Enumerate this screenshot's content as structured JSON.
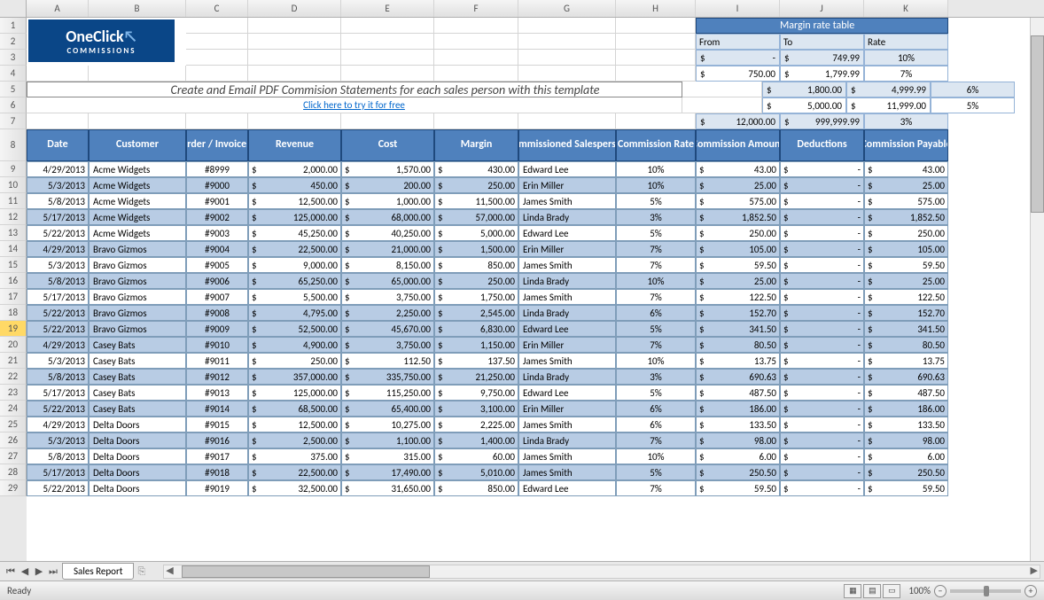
{
  "columns": [
    "A",
    "B",
    "C",
    "D",
    "E",
    "F",
    "G",
    "H",
    "I",
    "J",
    "K"
  ],
  "col_widths": {
    "A": 70,
    "B": 110,
    "C": 70,
    "D": 105,
    "E": 105,
    "F": 95,
    "G": 110,
    "H": 90,
    "I": 95,
    "J": 95,
    "K": 95
  },
  "visible_row_numbers": [
    1,
    2,
    3,
    4,
    5,
    6,
    7,
    8,
    9,
    10,
    11,
    12,
    13,
    14,
    15,
    16,
    17,
    18,
    19,
    20,
    21,
    22,
    23,
    24,
    25,
    26,
    27,
    28,
    29
  ],
  "selected_row": 19,
  "logo": {
    "line1": "OneClick",
    "line2": "COMMISSIONS",
    "bg": "#0a4687"
  },
  "ad": {
    "text": "Create and Email PDF Commision Statements for each sales person with this template",
    "link_text": "Click here to try it for free"
  },
  "margin_table": {
    "title": "Margin rate table",
    "headers": [
      "From",
      "To",
      "Rate"
    ],
    "rows": [
      {
        "from": "-",
        "to": "749.99",
        "rate": "10%"
      },
      {
        "from": "750.00",
        "to": "1,799.99",
        "rate": "7%"
      },
      {
        "from": "1,800.00",
        "to": "4,999.99",
        "rate": "6%"
      },
      {
        "from": "5,000.00",
        "to": "11,999.00",
        "rate": "5%"
      },
      {
        "from": "12,000.00",
        "to": "999,999.99",
        "rate": "3%"
      }
    ],
    "colors": {
      "header_bg": "#4f81bd",
      "header_fg": "#ffffff",
      "sub_bg": "#dce6f1",
      "border": "#95b3d7",
      "alt_bg": "#dce6f1"
    }
  },
  "table": {
    "headers": [
      "Date",
      "Customer",
      "Order / Invoice #",
      "Revenue",
      "Cost",
      "Margin",
      "Commissioned Salesperson",
      "Commission Rate",
      "Commission Amount",
      "Deductions",
      "Commission Payable"
    ],
    "colors": {
      "header_bg": "#4f81bd",
      "header_fg": "#ffffff",
      "row_alt_bg": "#b8cce4",
      "border": "#7f9db9"
    },
    "rows": [
      {
        "date": "4/29/2013",
        "customer": "Acme Widgets",
        "order": "#8999",
        "revenue": "2,000.00",
        "cost": "1,570.00",
        "margin": "430.00",
        "sales": "Edward Lee",
        "rate": "10%",
        "amount": "43.00",
        "ded": "-",
        "pay": "43.00"
      },
      {
        "date": "5/3/2013",
        "customer": "Acme Widgets",
        "order": "#9000",
        "revenue": "450.00",
        "cost": "200.00",
        "margin": "250.00",
        "sales": "Erin Miller",
        "rate": "10%",
        "amount": "25.00",
        "ded": "-",
        "pay": "25.00"
      },
      {
        "date": "5/8/2013",
        "customer": "Acme Widgets",
        "order": "#9001",
        "revenue": "12,500.00",
        "cost": "1,000.00",
        "margin": "11,500.00",
        "sales": "James Smith",
        "rate": "5%",
        "amount": "575.00",
        "ded": "-",
        "pay": "575.00"
      },
      {
        "date": "5/17/2013",
        "customer": "Acme Widgets",
        "order": "#9002",
        "revenue": "125,000.00",
        "cost": "68,000.00",
        "margin": "57,000.00",
        "sales": "Linda Brady",
        "rate": "3%",
        "amount": "1,852.50",
        "ded": "-",
        "pay": "1,852.50"
      },
      {
        "date": "5/22/2013",
        "customer": "Acme Widgets",
        "order": "#9003",
        "revenue": "45,250.00",
        "cost": "40,250.00",
        "margin": "5,000.00",
        "sales": "Edward Lee",
        "rate": "5%",
        "amount": "250.00",
        "ded": "-",
        "pay": "250.00"
      },
      {
        "date": "4/29/2013",
        "customer": "Bravo Gizmos",
        "order": "#9004",
        "revenue": "22,500.00",
        "cost": "21,000.00",
        "margin": "1,500.00",
        "sales": "Erin Miller",
        "rate": "7%",
        "amount": "105.00",
        "ded": "-",
        "pay": "105.00"
      },
      {
        "date": "5/3/2013",
        "customer": "Bravo Gizmos",
        "order": "#9005",
        "revenue": "9,000.00",
        "cost": "8,150.00",
        "margin": "850.00",
        "sales": "James Smith",
        "rate": "7%",
        "amount": "59.50",
        "ded": "-",
        "pay": "59.50"
      },
      {
        "date": "5/8/2013",
        "customer": "Bravo Gizmos",
        "order": "#9006",
        "revenue": "65,250.00",
        "cost": "65,000.00",
        "margin": "250.00",
        "sales": "Linda Brady",
        "rate": "10%",
        "amount": "25.00",
        "ded": "-",
        "pay": "25.00"
      },
      {
        "date": "5/17/2013",
        "customer": "Bravo Gizmos",
        "order": "#9007",
        "revenue": "5,500.00",
        "cost": "3,750.00",
        "margin": "1,750.00",
        "sales": "James Smith",
        "rate": "7%",
        "amount": "122.50",
        "ded": "-",
        "pay": "122.50"
      },
      {
        "date": "5/22/2013",
        "customer": "Bravo Gizmos",
        "order": "#9008",
        "revenue": "4,795.00",
        "cost": "2,250.00",
        "margin": "2,545.00",
        "sales": "Linda Brady",
        "rate": "6%",
        "amount": "152.70",
        "ded": "-",
        "pay": "152.70"
      },
      {
        "date": "5/22/2013",
        "customer": "Bravo Gizmos",
        "order": "#9009",
        "revenue": "52,500.00",
        "cost": "45,670.00",
        "margin": "6,830.00",
        "sales": "Edward Lee",
        "rate": "5%",
        "amount": "341.50",
        "ded": "-",
        "pay": "341.50"
      },
      {
        "date": "4/29/2013",
        "customer": "Casey Bats",
        "order": "#9010",
        "revenue": "4,900.00",
        "cost": "3,750.00",
        "margin": "1,150.00",
        "sales": "Erin Miller",
        "rate": "7%",
        "amount": "80.50",
        "ded": "-",
        "pay": "80.50"
      },
      {
        "date": "5/3/2013",
        "customer": "Casey Bats",
        "order": "#9011",
        "revenue": "250.00",
        "cost": "112.50",
        "margin": "137.50",
        "sales": "James Smith",
        "rate": "10%",
        "amount": "13.75",
        "ded": "-",
        "pay": "13.75"
      },
      {
        "date": "5/8/2013",
        "customer": "Casey Bats",
        "order": "#9012",
        "revenue": "357,000.00",
        "cost": "335,750.00",
        "margin": "21,250.00",
        "sales": "Linda Brady",
        "rate": "3%",
        "amount": "690.63",
        "ded": "-",
        "pay": "690.63"
      },
      {
        "date": "5/17/2013",
        "customer": "Casey Bats",
        "order": "#9013",
        "revenue": "125,000.00",
        "cost": "115,250.00",
        "margin": "9,750.00",
        "sales": "Edward Lee",
        "rate": "5%",
        "amount": "487.50",
        "ded": "-",
        "pay": "487.50"
      },
      {
        "date": "5/22/2013",
        "customer": "Casey Bats",
        "order": "#9014",
        "revenue": "68,500.00",
        "cost": "65,400.00",
        "margin": "3,100.00",
        "sales": "Erin Miller",
        "rate": "6%",
        "amount": "186.00",
        "ded": "-",
        "pay": "186.00"
      },
      {
        "date": "4/29/2013",
        "customer": "Delta Doors",
        "order": "#9015",
        "revenue": "12,500.00",
        "cost": "10,275.00",
        "margin": "2,225.00",
        "sales": "James Smith",
        "rate": "6%",
        "amount": "133.50",
        "ded": "-",
        "pay": "133.50"
      },
      {
        "date": "5/3/2013",
        "customer": "Delta Doors",
        "order": "#9016",
        "revenue": "2,500.00",
        "cost": "1,100.00",
        "margin": "1,400.00",
        "sales": "Linda Brady",
        "rate": "7%",
        "amount": "98.00",
        "ded": "-",
        "pay": "98.00"
      },
      {
        "date": "5/8/2013",
        "customer": "Delta Doors",
        "order": "#9017",
        "revenue": "375.00",
        "cost": "315.00",
        "margin": "60.00",
        "sales": "James Smith",
        "rate": "10%",
        "amount": "6.00",
        "ded": "-",
        "pay": "6.00"
      },
      {
        "date": "5/17/2013",
        "customer": "Delta Doors",
        "order": "#9018",
        "revenue": "22,500.00",
        "cost": "17,490.00",
        "margin": "5,010.00",
        "sales": "James Smith",
        "rate": "5%",
        "amount": "250.50",
        "ded": "-",
        "pay": "250.50"
      },
      {
        "date": "5/22/2013",
        "customer": "Delta Doors",
        "order": "#9019",
        "revenue": "32,500.00",
        "cost": "31,650.00",
        "margin": "850.00",
        "sales": "Edward Lee",
        "rate": "7%",
        "amount": "59.50",
        "ded": "-",
        "pay": "59.50"
      }
    ]
  },
  "sheet_tab": "Sales Report",
  "status": {
    "ready": "Ready",
    "zoom": "100%"
  }
}
